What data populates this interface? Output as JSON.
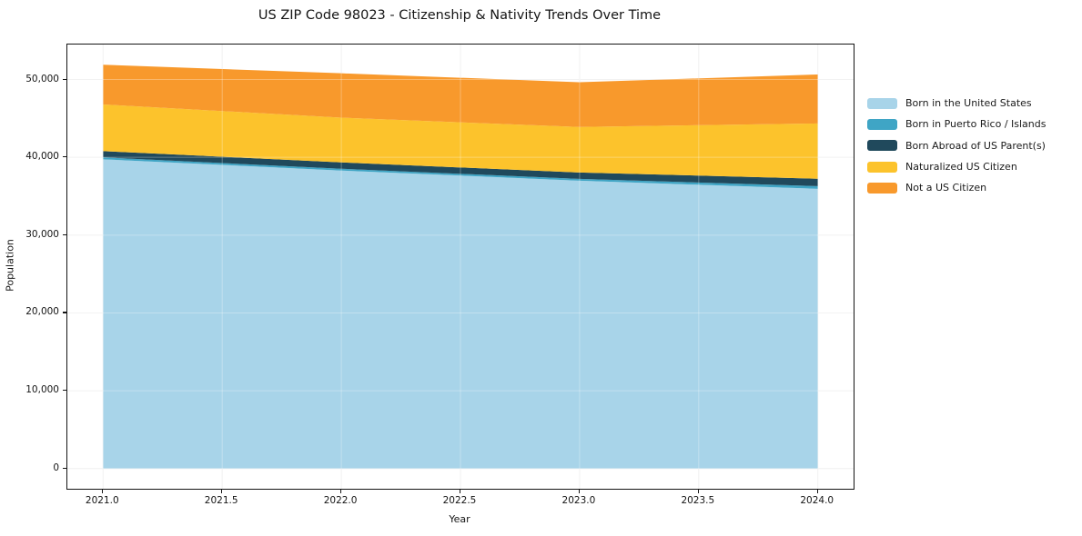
{
  "chart_data": {
    "type": "area",
    "title": "US ZIP Code 98023 - Citizenship & Nativity Trends Over Time",
    "xlabel": "Year",
    "ylabel": "Population",
    "x": [
      2021,
      2022,
      2023,
      2024
    ],
    "series": [
      {
        "name": "Born in the United States",
        "color": "#A8D4E9",
        "values": [
          39750,
          38300,
          37000,
          35950
        ]
      },
      {
        "name": "Born in Puerto Rico / Islands",
        "color": "#3FA5C5",
        "values": [
          250,
          230,
          230,
          350
        ]
      },
      {
        "name": "Born Abroad of US Parent(s)",
        "color": "#20495C",
        "values": [
          800,
          820,
          820,
          950
        ]
      },
      {
        "name": "Naturalized US Citizen",
        "color": "#FCC32C",
        "values": [
          6000,
          5750,
          5850,
          7100
        ]
      },
      {
        "name": "Not a US Citizen",
        "color": "#F8992C",
        "values": [
          5100,
          5700,
          5750,
          6300
        ]
      }
    ],
    "stacked": true,
    "xlim": [
      2020.85,
      2024.15
    ],
    "ylim": [
      -2600,
      54500
    ],
    "grid": true,
    "legend_position": "right-outside",
    "x_ticks": [
      {
        "value": 2021.0,
        "label": "2021.0"
      },
      {
        "value": 2021.5,
        "label": "2021.5"
      },
      {
        "value": 2022.0,
        "label": "2022.0"
      },
      {
        "value": 2022.5,
        "label": "2022.5"
      },
      {
        "value": 2023.0,
        "label": "2023.0"
      },
      {
        "value": 2023.5,
        "label": "2023.5"
      },
      {
        "value": 2024.0,
        "label": "2024.0"
      }
    ],
    "y_ticks": [
      {
        "value": 0,
        "label": "0"
      },
      {
        "value": 10000,
        "label": "10,000"
      },
      {
        "value": 20000,
        "label": "20,000"
      },
      {
        "value": 30000,
        "label": "30,000"
      },
      {
        "value": 40000,
        "label": "40,000"
      },
      {
        "value": 50000,
        "label": "50,000"
      }
    ]
  }
}
